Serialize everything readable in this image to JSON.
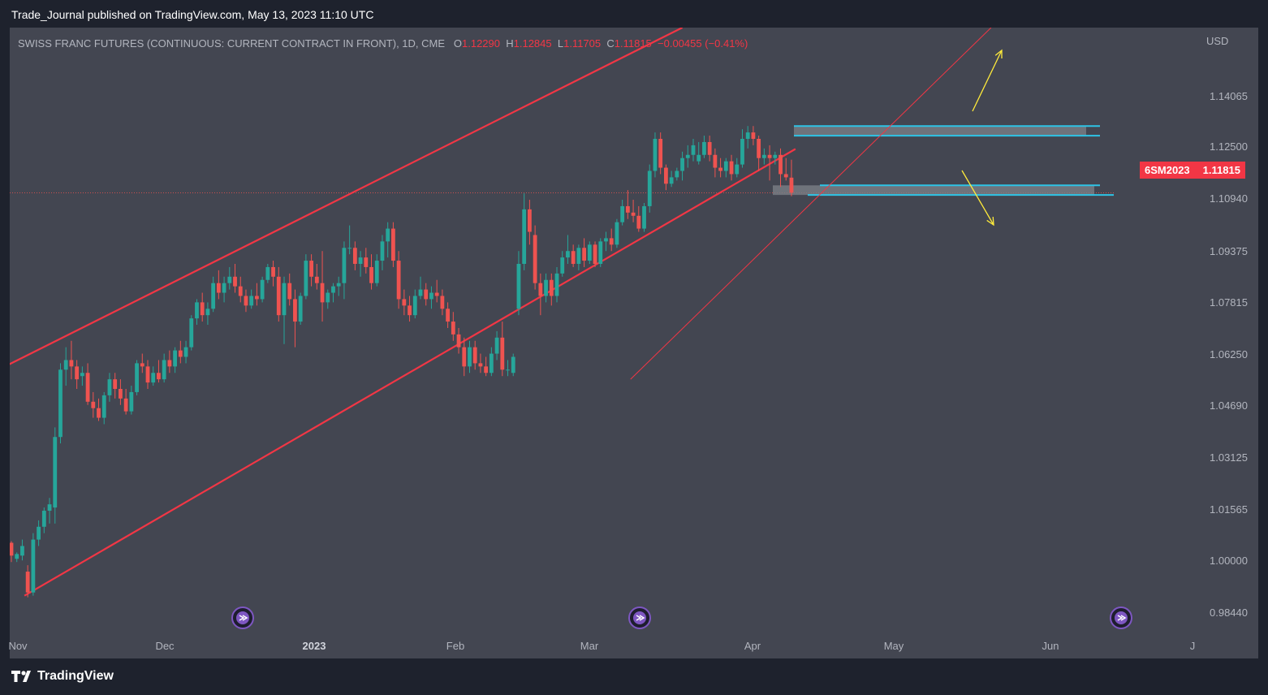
{
  "header": {
    "publisher_line": "Trade_Journal published on TradingView.com, May 13, 2023 11:10 UTC"
  },
  "legend": {
    "symbol": "SWISS FRANC FUTURES (CONTINUOUS: CURRENT CONTRACT IN FRONT), 1D, CME",
    "o_label": "O",
    "o_value": "1.12290",
    "h_label": "H",
    "h_value": "1.12845",
    "l_label": "L",
    "l_value": "1.11705",
    "c_label": "C",
    "c_value": "1.11815",
    "change": "−0.00455 (−0.41%)"
  },
  "price_tag": {
    "ticker": "6SM2023",
    "value": "1.11815"
  },
  "footer": {
    "brand": "TradingView"
  },
  "colors": {
    "up": "#26a69a",
    "down": "#ef5350",
    "channel": "#f23645",
    "zone": "#2ec4e6",
    "arrow": "#ffeb3b",
    "panel": "#434651"
  },
  "chart_data": {
    "type": "candlestick",
    "currency": "USD",
    "y_ticks": [
      "1.14065",
      "1.12500",
      "1.10940",
      "1.09375",
      "1.07815",
      "1.06250",
      "1.04690",
      "1.03125",
      "1.01565",
      "1.00000",
      "0.98440"
    ],
    "x_ticks": [
      "Nov",
      "Dec",
      "2023",
      "Feb",
      "Mar",
      "Apr",
      "May",
      "Jun",
      "J"
    ],
    "ylim": [
      0.9797,
      1.1697
    ],
    "last_price": 1.11815,
    "candles": [
      [
        1.009,
        1.0095,
        1.003,
        1.005
      ],
      [
        1.004,
        1.006,
        1.003,
        1.0055
      ],
      [
        1.005,
        1.01,
        1.0035,
        1.008
      ],
      [
        1.0,
        1.002,
        0.992,
        0.9935
      ],
      [
        0.9935,
        1.012,
        0.9925,
        1.01
      ],
      [
        1.01,
        1.016,
        1.008,
        1.014
      ],
      [
        1.014,
        1.02,
        1.012,
        1.019
      ],
      [
        1.019,
        1.023,
        1.015,
        1.021
      ],
      [
        1.02,
        1.045,
        1.015,
        1.042
      ],
      [
        1.042,
        1.065,
        1.04,
        1.063
      ],
      [
        1.063,
        1.07,
        1.058,
        1.066
      ],
      [
        1.066,
        1.072,
        1.06,
        1.064
      ],
      [
        1.064,
        1.066,
        1.057,
        1.06
      ],
      [
        1.061,
        1.064,
        1.058,
        1.062
      ],
      [
        1.062,
        1.065,
        1.052,
        1.053
      ],
      [
        1.053,
        1.056,
        1.048,
        1.051
      ],
      [
        1.051,
        1.054,
        1.047,
        1.048
      ],
      [
        1.048,
        1.056,
        1.046,
        1.055
      ],
      [
        1.055,
        1.062,
        1.053,
        1.06
      ],
      [
        1.06,
        1.062,
        1.054,
        1.057
      ],
      [
        1.057,
        1.06,
        1.052,
        1.054
      ],
      [
        1.054,
        1.057,
        1.049,
        1.05
      ],
      [
        1.05,
        1.058,
        1.049,
        1.056
      ],
      [
        1.056,
        1.066,
        1.055,
        1.065
      ],
      [
        1.065,
        1.068,
        1.062,
        1.064
      ],
      [
        1.064,
        1.066,
        1.057,
        1.059
      ],
      [
        1.059,
        1.064,
        1.058,
        1.062
      ],
      [
        1.062,
        1.066,
        1.059,
        1.06
      ],
      [
        1.06,
        1.068,
        1.059,
        1.066
      ],
      [
        1.066,
        1.069,
        1.062,
        1.064
      ],
      [
        1.064,
        1.07,
        1.062,
        1.069
      ],
      [
        1.069,
        1.072,
        1.065,
        1.067
      ],
      [
        1.067,
        1.072,
        1.065,
        1.07
      ],
      [
        1.07,
        1.08,
        1.069,
        1.079
      ],
      [
        1.079,
        1.085,
        1.077,
        1.084
      ],
      [
        1.084,
        1.087,
        1.078,
        1.08
      ],
      [
        1.08,
        1.084,
        1.077,
        1.082
      ],
      [
        1.082,
        1.092,
        1.081,
        1.09
      ],
      [
        1.09,
        1.094,
        1.085,
        1.087
      ],
      [
        1.087,
        1.092,
        1.084,
        1.09
      ],
      [
        1.09,
        1.095,
        1.088,
        1.092
      ],
      [
        1.092,
        1.096,
        1.087,
        1.089
      ],
      [
        1.089,
        1.092,
        1.084,
        1.086
      ],
      [
        1.086,
        1.088,
        1.081,
        1.083
      ],
      [
        1.083,
        1.088,
        1.082,
        1.086
      ],
      [
        1.086,
        1.09,
        1.083,
        1.085
      ],
      [
        1.085,
        1.092,
        1.084,
        1.091
      ],
      [
        1.091,
        1.096,
        1.09,
        1.095
      ],
      [
        1.095,
        1.097,
        1.089,
        1.092
      ],
      [
        1.092,
        1.095,
        1.078,
        1.08
      ],
      [
        1.08,
        1.092,
        1.071,
        1.09
      ],
      [
        1.09,
        1.093,
        1.083,
        1.085
      ],
      [
        1.085,
        1.088,
        1.07,
        1.078
      ],
      [
        1.078,
        1.087,
        1.077,
        1.086
      ],
      [
        1.086,
        1.099,
        1.085,
        1.097
      ],
      [
        1.097,
        1.099,
        1.089,
        1.092
      ],
      [
        1.092,
        1.096,
        1.088,
        1.09
      ],
      [
        1.09,
        1.1,
        1.078,
        1.084
      ],
      [
        1.084,
        1.088,
        1.082,
        1.087
      ],
      [
        1.087,
        1.09,
        1.084,
        1.089
      ],
      [
        1.089,
        1.092,
        1.086,
        1.09
      ],
      [
        1.09,
        1.103,
        1.085,
        1.101
      ],
      [
        1.101,
        1.108,
        1.099,
        1.101
      ],
      [
        1.101,
        1.103,
        1.094,
        1.096
      ],
      [
        1.096,
        1.1,
        1.092,
        1.098
      ],
      [
        1.098,
        1.101,
        1.093,
        1.095
      ],
      [
        1.095,
        1.099,
        1.088,
        1.09
      ],
      [
        1.09,
        1.099,
        1.089,
        1.097
      ],
      [
        1.097,
        1.105,
        1.094,
        1.103
      ],
      [
        1.103,
        1.109,
        1.098,
        1.107
      ],
      [
        1.107,
        1.109,
        1.095,
        1.097
      ],
      [
        1.097,
        1.1,
        1.082,
        1.085
      ],
      [
        1.085,
        1.088,
        1.08,
        1.083
      ],
      [
        1.083,
        1.086,
        1.078,
        1.08
      ],
      [
        1.08,
        1.088,
        1.079,
        1.086
      ],
      [
        1.086,
        1.092,
        1.085,
        1.088
      ],
      [
        1.088,
        1.09,
        1.083,
        1.085
      ],
      [
        1.085,
        1.089,
        1.082,
        1.087
      ],
      [
        1.087,
        1.091,
        1.084,
        1.086
      ],
      [
        1.086,
        1.088,
        1.08,
        1.082
      ],
      [
        1.082,
        1.084,
        1.076,
        1.078
      ],
      [
        1.078,
        1.081,
        1.072,
        1.074
      ],
      [
        1.074,
        1.076,
        1.068,
        1.07
      ],
      [
        1.07,
        1.073,
        1.061,
        1.064
      ],
      [
        1.064,
        1.072,
        1.062,
        1.07
      ],
      [
        1.07,
        1.072,
        1.063,
        1.065
      ],
      [
        1.065,
        1.068,
        1.062,
        1.064
      ],
      [
        1.064,
        1.067,
        1.061,
        1.062
      ],
      [
        1.062,
        1.07,
        1.061,
        1.068
      ],
      [
        1.068,
        1.075,
        1.066,
        1.073
      ],
      [
        1.073,
        1.078,
        1.061,
        1.063
      ],
      [
        1.063,
        1.066,
        1.061,
        1.063
      ],
      [
        1.062,
        1.068,
        1.061,
        1.067
      ],
      [
        1.082,
        1.1,
        1.08,
        1.096
      ],
      [
        1.096,
        1.118,
        1.094,
        1.113
      ],
      [
        1.113,
        1.116,
        1.102,
        1.106
      ],
      [
        1.105,
        1.108,
        1.088,
        1.09
      ],
      [
        1.09,
        1.093,
        1.08,
        1.086
      ],
      [
        1.086,
        1.093,
        1.084,
        1.091
      ],
      [
        1.091,
        1.093,
        1.083,
        1.086
      ],
      [
        1.086,
        1.095,
        1.084,
        1.093
      ],
      [
        1.093,
        1.1,
        1.092,
        1.098
      ],
      [
        1.098,
        1.105,
        1.096,
        1.1
      ],
      [
        1.1,
        1.102,
        1.095,
        1.096
      ],
      [
        1.096,
        1.102,
        1.094,
        1.101
      ],
      [
        1.101,
        1.104,
        1.095,
        1.097
      ],
      [
        1.097,
        1.103,
        1.096,
        1.102
      ],
      [
        1.102,
        1.103,
        1.095,
        1.096
      ],
      [
        1.096,
        1.104,
        1.095,
        1.103
      ],
      [
        1.103,
        1.106,
        1.1,
        1.104
      ],
      [
        1.104,
        1.107,
        1.1,
        1.102
      ],
      [
        1.102,
        1.11,
        1.101,
        1.109
      ],
      [
        1.109,
        1.116,
        1.108,
        1.114
      ],
      [
        1.114,
        1.119,
        1.11,
        1.112
      ],
      [
        1.112,
        1.116,
        1.109,
        1.111
      ],
      [
        1.111,
        1.114,
        1.106,
        1.107
      ],
      [
        1.107,
        1.115,
        1.106,
        1.114
      ],
      [
        1.114,
        1.127,
        1.112,
        1.125
      ],
      [
        1.125,
        1.137,
        1.123,
        1.135
      ],
      [
        1.135,
        1.137,
        1.124,
        1.126
      ],
      [
        1.126,
        1.127,
        1.119,
        1.121
      ],
      [
        1.121,
        1.125,
        1.12,
        1.123
      ],
      [
        1.123,
        1.126,
        1.122,
        1.125
      ],
      [
        1.125,
        1.131,
        1.122,
        1.129
      ],
      [
        1.129,
        1.133,
        1.126,
        1.13
      ],
      [
        1.13,
        1.135,
        1.128,
        1.133
      ],
      [
        1.128,
        1.134,
        1.127,
        1.13
      ],
      [
        1.13,
        1.136,
        1.129,
        1.134
      ],
      [
        1.134,
        1.136,
        1.128,
        1.13
      ],
      [
        1.13,
        1.132,
        1.123,
        1.126
      ],
      [
        1.126,
        1.129,
        1.123,
        1.125
      ],
      [
        1.125,
        1.129,
        1.123,
        1.128
      ],
      [
        1.128,
        1.13,
        1.122,
        1.124
      ],
      [
        1.124,
        1.129,
        1.123,
        1.127
      ],
      [
        1.127,
        1.138,
        1.126,
        1.135
      ],
      [
        1.135,
        1.139,
        1.132,
        1.137
      ],
      [
        1.137,
        1.139,
        1.133,
        1.135
      ],
      [
        1.135,
        1.136,
        1.125,
        1.129
      ],
      [
        1.129,
        1.132,
        1.127,
        1.13
      ],
      [
        1.13,
        1.133,
        1.122,
        1.129
      ],
      [
        1.129,
        1.131,
        1.127,
        1.13
      ],
      [
        1.13,
        1.132,
        1.12,
        1.124
      ],
      [
        1.124,
        1.129,
        1.122,
        1.123
      ],
      [
        1.1229,
        1.1285,
        1.1171,
        1.1182
      ]
    ],
    "series_overlays": {
      "channel_upper": [
        [
          1.065,
          0
        ],
        [
          1.1697,
          123
        ]
      ],
      "channel_lower": [
        [
          0.9925,
          0
        ],
        [
          1.1252,
          137
        ]
      ],
      "wedge_support": [
        [
          1.06,
          90
        ],
        [
          1.1697,
          141
        ]
      ],
      "resistance_zone": [
        1.136,
        1.139
      ],
      "support_zone": [
        1.1175,
        1.1205
      ],
      "arrows": [
        "up",
        "down"
      ]
    }
  }
}
